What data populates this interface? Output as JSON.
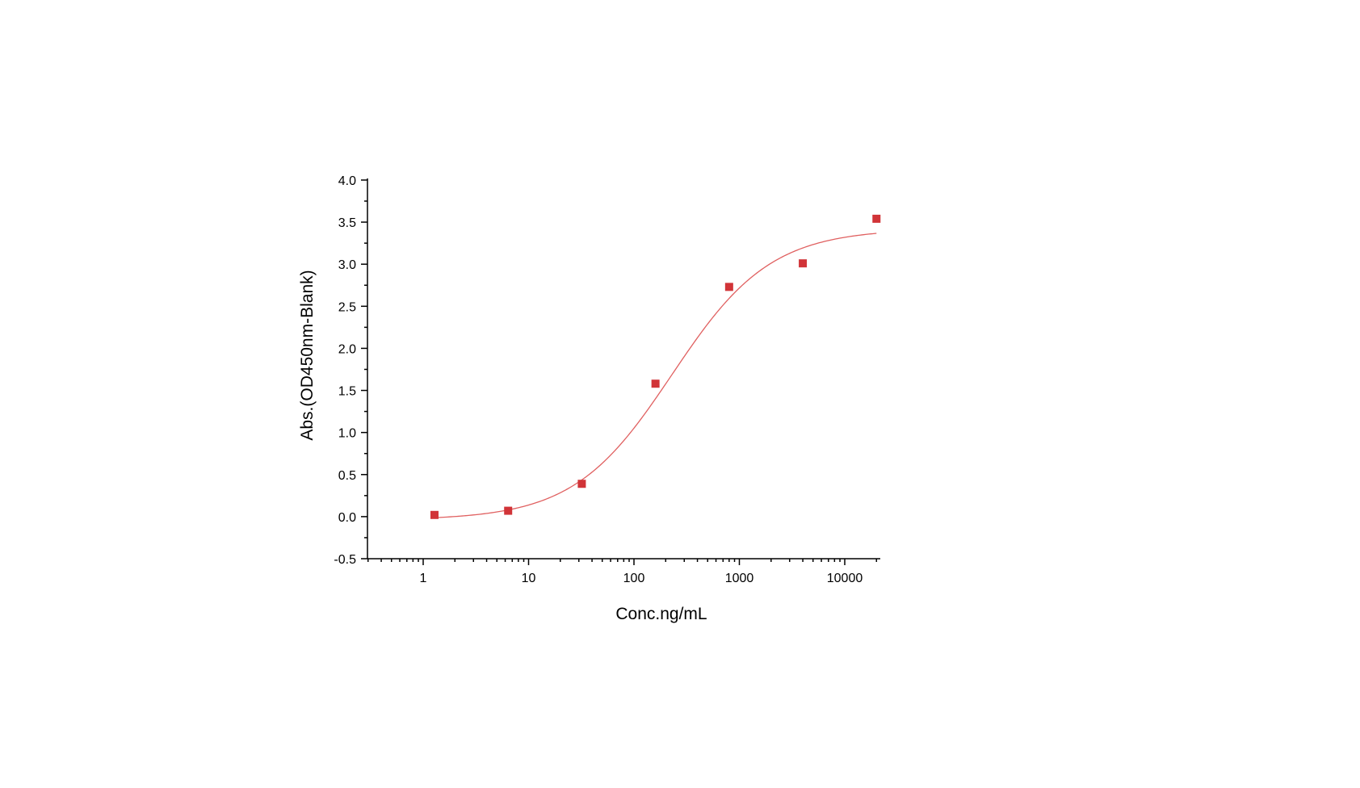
{
  "chart_data": {
    "type": "scatter",
    "title": "",
    "xlabel": "Conc.ng/mL",
    "ylabel": "Abs.(OD450nm-Blank)",
    "x_scale": "log",
    "xlim": [
      0.3,
      22000
    ],
    "ylim": [
      -0.5,
      4.0
    ],
    "x_ticks": [
      1,
      10,
      100,
      1000,
      10000
    ],
    "x_tick_labels": [
      "1",
      "10",
      "100",
      "1000",
      "10000"
    ],
    "y_ticks": [
      -0.5,
      0.0,
      0.5,
      1.0,
      1.5,
      2.0,
      2.5,
      3.0,
      3.5,
      4.0
    ],
    "y_tick_labels": [
      "-0.5",
      "0.0",
      "0.5",
      "1.0",
      "1.5",
      "2.0",
      "2.5",
      "3.0",
      "3.5",
      "4.0"
    ],
    "grid": false,
    "series": [
      {
        "x": [
          1.28,
          6.4,
          32,
          160,
          800,
          4000,
          20000
        ],
        "y": [
          0.02,
          0.07,
          0.39,
          1.58,
          2.73,
          3.01,
          3.54
        ],
        "marker": "square",
        "color": "#d13438"
      }
    ],
    "fit_curve": {
      "model": "4PL",
      "bottom": -0.04,
      "top": 3.42,
      "ec50": 230,
      "hill": 0.93,
      "x_range": [
        1.28,
        20000
      ],
      "color": "#e06060"
    }
  }
}
